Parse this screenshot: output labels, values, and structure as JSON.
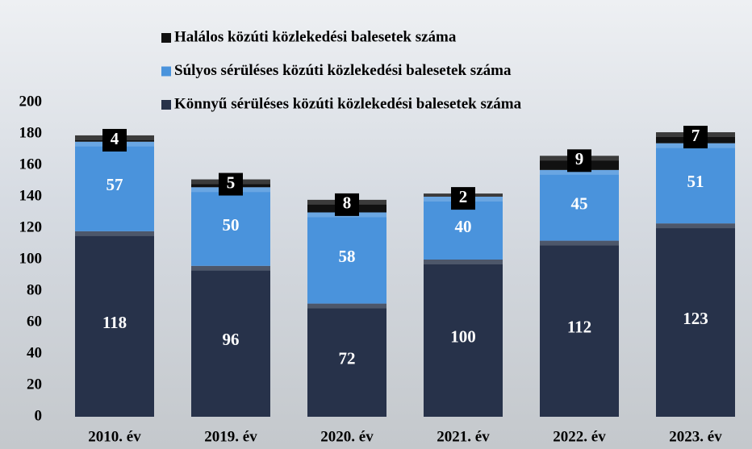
{
  "chart_data": {
    "type": "stacked-bar",
    "categories": [
      "2010. év",
      "2019. év",
      "2020. év",
      "2021. év",
      "2022. év",
      "2023. év"
    ],
    "series": [
      {
        "name": "Könnyű sérüléses közúti közlekedési balesetek száma",
        "color": "#27324a",
        "values": [
          118,
          96,
          72,
          100,
          112,
          123
        ]
      },
      {
        "name": "Súlyos sérüléses közúti közlekedési balesetek száma",
        "color": "#4a93dc",
        "values": [
          57,
          50,
          58,
          40,
          45,
          51
        ]
      },
      {
        "name": "Halálos közúti közlekedési balesetek száma",
        "color": "#111111",
        "values": [
          4,
          5,
          8,
          2,
          9,
          7
        ]
      }
    ],
    "ylim": [
      0,
      200
    ],
    "yticks": [
      0,
      20,
      40,
      60,
      80,
      100,
      120,
      140,
      160,
      180,
      200
    ]
  }
}
